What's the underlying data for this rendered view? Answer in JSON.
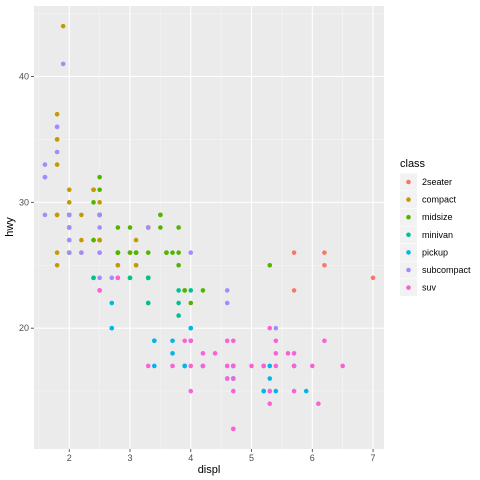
{
  "chart_data": {
    "type": "scatter",
    "xlabel": "displ",
    "ylabel": "hwy",
    "xlim": [
      1.42,
      7.18
    ],
    "ylim": [
      10.4,
      45.6
    ],
    "x_ticks": [
      2,
      3,
      4,
      5,
      6,
      7
    ],
    "y_ticks": [
      20,
      30,
      40
    ],
    "grid": true,
    "legend": {
      "title": "class",
      "position": "right"
    },
    "series": [
      {
        "name": "2seater",
        "color": "#F8766D",
        "points": [
          [
            5.7,
            26
          ],
          [
            5.7,
            23
          ],
          [
            6.2,
            26
          ],
          [
            6.2,
            25
          ],
          [
            7.0,
            24
          ]
        ]
      },
      {
        "name": "compact",
        "color": "#C49A00",
        "points": [
          [
            1.8,
            29
          ],
          [
            1.8,
            29
          ],
          [
            2.0,
            31
          ],
          [
            2.0,
            30
          ],
          [
            2.8,
            26
          ],
          [
            2.8,
            26
          ],
          [
            3.1,
            27
          ],
          [
            1.8,
            26
          ],
          [
            1.8,
            25
          ],
          [
            2.0,
            28
          ],
          [
            2.0,
            27
          ],
          [
            2.8,
            25
          ],
          [
            2.8,
            25
          ],
          [
            3.1,
            25
          ],
          [
            3.1,
            25
          ],
          [
            2.2,
            26
          ],
          [
            2.2,
            27
          ],
          [
            2.4,
            31
          ],
          [
            2.4,
            31
          ],
          [
            3.0,
            26
          ],
          [
            3.0,
            26
          ],
          [
            3.3,
            28
          ],
          [
            1.8,
            37
          ],
          [
            1.8,
            35
          ],
          [
            1.8,
            35
          ],
          [
            1.8,
            33
          ],
          [
            2.0,
            29
          ],
          [
            2.0,
            29
          ],
          [
            2.0,
            28
          ],
          [
            2.0,
            29
          ],
          [
            2.8,
            24
          ],
          [
            1.9,
            44
          ],
          [
            2.0,
            29
          ],
          [
            2.5,
            27
          ],
          [
            2.5,
            27
          ],
          [
            2.2,
            29
          ],
          [
            2.4,
            27
          ],
          [
            2.5,
            30
          ],
          [
            2.5,
            27
          ]
        ]
      },
      {
        "name": "midsize",
        "color": "#53B400",
        "points": [
          [
            2.4,
            27
          ],
          [
            2.4,
            30
          ],
          [
            3.1,
            26
          ],
          [
            3.5,
            29
          ],
          [
            3.6,
            26
          ],
          [
            2.4,
            24
          ],
          [
            3.0,
            28
          ],
          [
            3.3,
            28
          ],
          [
            3.3,
            26
          ],
          [
            3.3,
            24
          ],
          [
            3.8,
            28
          ],
          [
            3.8,
            26
          ],
          [
            3.8,
            25
          ],
          [
            2.5,
            32
          ],
          [
            2.5,
            31
          ],
          [
            2.5,
            29
          ],
          [
            2.8,
            26
          ],
          [
            2.8,
            26
          ],
          [
            3.1,
            26
          ],
          [
            3.1,
            26
          ],
          [
            3.5,
            28
          ],
          [
            3.5,
            29
          ],
          [
            3.7,
            26
          ],
          [
            4.0,
            22
          ],
          [
            4.2,
            23
          ],
          [
            5.3,
            25
          ],
          [
            2.0,
            26
          ],
          [
            2.0,
            26
          ],
          [
            2.0,
            28
          ],
          [
            2.0,
            29
          ],
          [
            2.5,
            29
          ],
          [
            2.5,
            29
          ],
          [
            2.8,
            26
          ],
          [
            2.8,
            26
          ],
          [
            2.8,
            28
          ],
          [
            3.0,
            26
          ],
          [
            3.0,
            24
          ],
          [
            3.3,
            24
          ],
          [
            3.6,
            26
          ],
          [
            3.9,
            23
          ],
          [
            3.9,
            23
          ]
        ]
      },
      {
        "name": "minivan",
        "color": "#00C094",
        "points": [
          [
            2.4,
            24
          ],
          [
            3.0,
            24
          ],
          [
            3.3,
            22
          ],
          [
            3.3,
            22
          ],
          [
            3.3,
            24
          ],
          [
            3.3,
            24
          ],
          [
            3.3,
            24
          ],
          [
            3.8,
            22
          ],
          [
            3.8,
            21
          ],
          [
            3.8,
            23
          ],
          [
            4.0,
            23
          ]
        ]
      },
      {
        "name": "pickup",
        "color": "#00B6EB",
        "points": [
          [
            2.7,
            20
          ],
          [
            2.7,
            20
          ],
          [
            2.7,
            22
          ],
          [
            3.4,
            19
          ],
          [
            3.4,
            19
          ],
          [
            3.4,
            17
          ],
          [
            3.7,
            19
          ],
          [
            3.7,
            18
          ],
          [
            3.9,
            17
          ],
          [
            3.9,
            17
          ],
          [
            4.0,
            20
          ],
          [
            4.0,
            20
          ],
          [
            4.2,
            17
          ],
          [
            4.6,
            16
          ],
          [
            4.7,
            17
          ],
          [
            4.7,
            16
          ],
          [
            4.7,
            16
          ],
          [
            5.2,
            15
          ],
          [
            5.2,
            15
          ],
          [
            5.3,
            17
          ],
          [
            5.3,
            16
          ],
          [
            5.4,
            15
          ],
          [
            5.7,
            17
          ],
          [
            5.9,
            15
          ],
          [
            4.7,
            17
          ],
          [
            4.7,
            16
          ],
          [
            5.2,
            17
          ]
        ]
      },
      {
        "name": "subcompact",
        "color": "#A58AFF",
        "points": [
          [
            1.6,
            33
          ],
          [
            1.6,
            32
          ],
          [
            1.6,
            32
          ],
          [
            1.6,
            29
          ],
          [
            1.6,
            32
          ],
          [
            1.8,
            34
          ],
          [
            1.8,
            36
          ],
          [
            1.8,
            36
          ],
          [
            1.9,
            41
          ],
          [
            2.0,
            29
          ],
          [
            2.0,
            26
          ],
          [
            2.0,
            27
          ],
          [
            2.0,
            29
          ],
          [
            2.2,
            26
          ],
          [
            2.5,
            28
          ],
          [
            2.5,
            29
          ],
          [
            2.5,
            24
          ],
          [
            2.7,
            24
          ],
          [
            2.8,
            24
          ],
          [
            3.3,
            28
          ],
          [
            4.0,
            26
          ],
          [
            4.6,
            23
          ],
          [
            4.6,
            22
          ],
          [
            5.4,
            20
          ],
          [
            2.5,
            26
          ],
          [
            2.5,
            26
          ],
          [
            2.5,
            29
          ],
          [
            2.0,
            28
          ]
        ]
      },
      {
        "name": "suv",
        "color": "#FB61D7",
        "points": [
          [
            4.0,
            15
          ],
          [
            4.0,
            19
          ],
          [
            4.0,
            17
          ],
          [
            4.6,
            17
          ],
          [
            5.0,
            17
          ],
          [
            5.3,
            14
          ],
          [
            5.3,
            15
          ],
          [
            5.7,
            17
          ],
          [
            6.5,
            17
          ],
          [
            4.2,
            18
          ],
          [
            4.4,
            18
          ],
          [
            4.7,
            12
          ],
          [
            4.7,
            12
          ],
          [
            4.7,
            16
          ],
          [
            5.7,
            18
          ],
          [
            5.2,
            17
          ],
          [
            6.1,
            14
          ],
          [
            5.3,
            20
          ],
          [
            5.3,
            15
          ],
          [
            5.4,
            18
          ],
          [
            5.4,
            17
          ],
          [
            5.6,
            18
          ],
          [
            6.0,
            17
          ],
          [
            6.2,
            19
          ],
          [
            5.4,
            19
          ],
          [
            3.7,
            17
          ],
          [
            3.9,
            19
          ],
          [
            4.0,
            19
          ],
          [
            4.7,
            19
          ],
          [
            4.6,
            19
          ],
          [
            4.6,
            16
          ],
          [
            4.7,
            17
          ],
          [
            5.7,
            15
          ],
          [
            4.2,
            17
          ],
          [
            4.7,
            15
          ],
          [
            2.5,
            23
          ],
          [
            2.5,
            23
          ],
          [
            2.8,
            24
          ],
          [
            3.3,
            17
          ]
        ]
      }
    ]
  }
}
